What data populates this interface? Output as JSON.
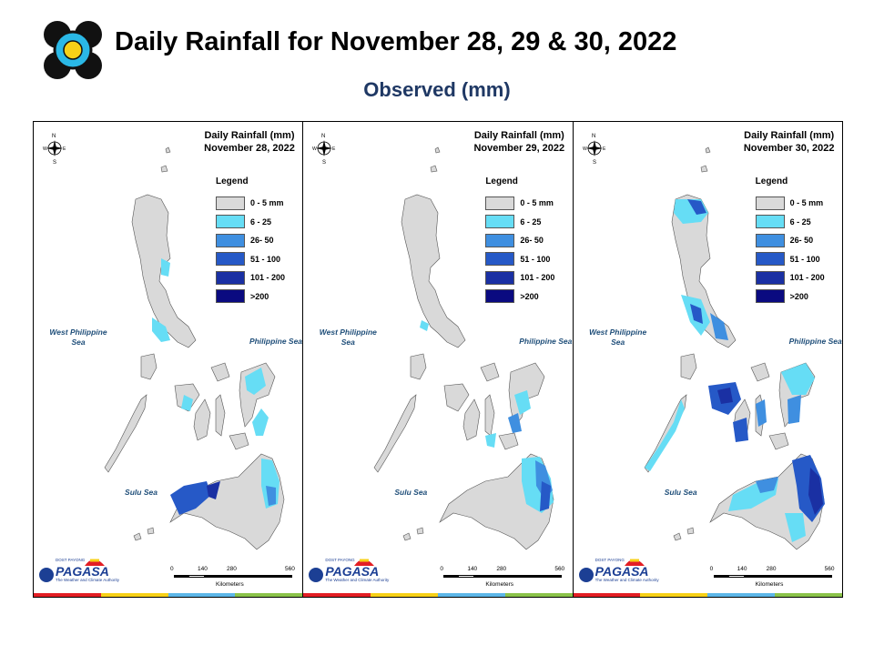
{
  "header": {
    "title": "Daily Rainfall for November 28, 29 & 30, 2022",
    "subtitle": "Observed (mm)"
  },
  "legend": {
    "title": "Legend",
    "classes": [
      {
        "label": "0 - 5 mm",
        "color": "#D9D9D9"
      },
      {
        "label": "6 - 25",
        "color": "#66DDF5"
      },
      {
        "label": "26- 50",
        "color": "#3F8FE0"
      },
      {
        "label": "51 - 100",
        "color": "#2659C7"
      },
      {
        "label": "101 - 200",
        "color": "#1A30A3"
      },
      {
        "label": ">200",
        "color": "#0A0A80"
      }
    ]
  },
  "labels": {
    "west_sea": "West Philippine Sea",
    "east_sea": "Philippine Sea",
    "sulu_sea": "Sulu Sea",
    "scale_ticks": [
      "0",
      "140",
      "280",
      "560"
    ],
    "scale_unit": "Kilometers",
    "compass": {
      "n": "N",
      "s": "S",
      "e": "E",
      "w": "W"
    },
    "brand": "PAGASA",
    "brand_small": "DOST PAYONG",
    "brand_tagline": "The Weather and Climate Authority"
  },
  "maps": [
    {
      "title_line1": "Daily Rainfall (mm)",
      "title_line2": "November 28, 2022"
    },
    {
      "title_line1": "Daily Rainfall (mm)",
      "title_line2": "November 29, 2022"
    },
    {
      "title_line1": "Daily Rainfall (mm)",
      "title_line2": "November 30, 2022"
    }
  ],
  "colors": {
    "subtitle": "#1F3864",
    "land_base": "#D9D9D9",
    "stripe": [
      "#E31E24",
      "#F7D117",
      "#5DB7E8",
      "#8BC34A"
    ]
  }
}
